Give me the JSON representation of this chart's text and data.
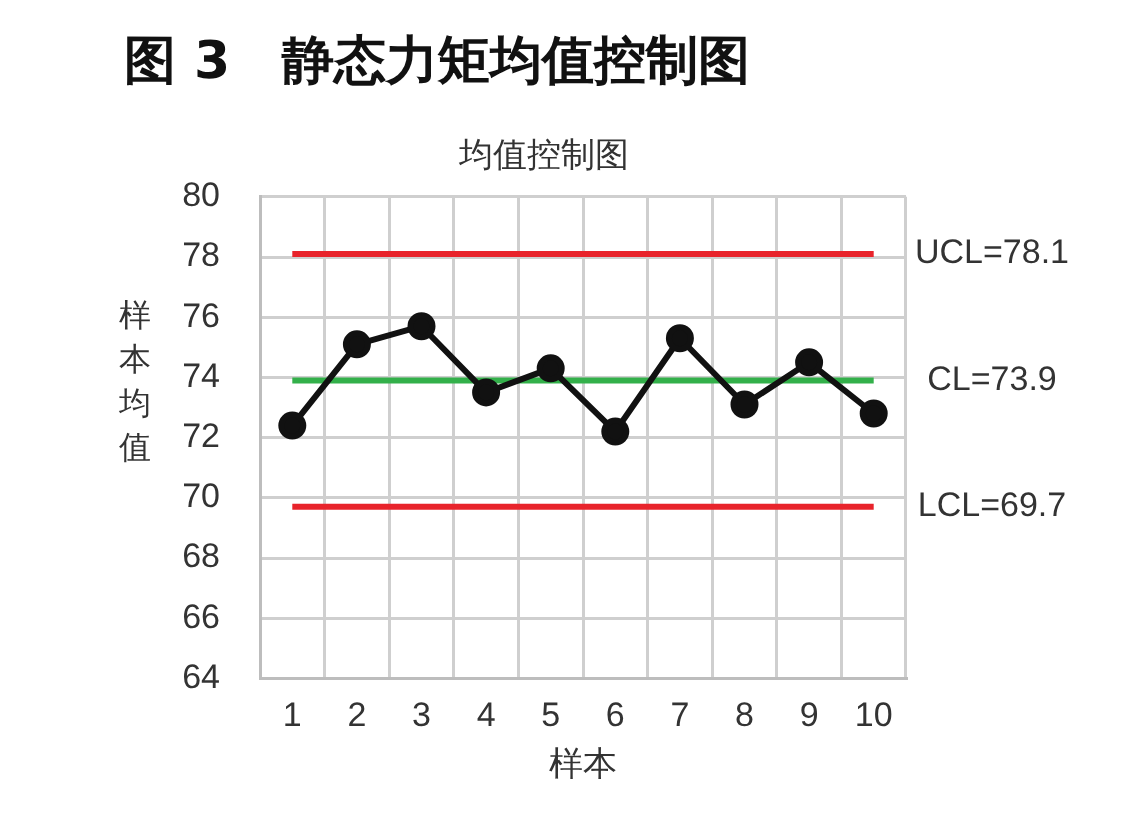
{
  "chart_data": {
    "type": "line",
    "title": "图 3　静态力矩均值控制图",
    "subtitle": "均值控制图",
    "xlabel": "样本",
    "ylabel": "样本均值",
    "categories": [
      "1",
      "2",
      "3",
      "4",
      "5",
      "6",
      "7",
      "8",
      "9",
      "10"
    ],
    "series": [
      {
        "color": "#111111",
        "values": [
          72.4,
          75.1,
          75.7,
          73.5,
          74.3,
          72.2,
          75.3,
          73.1,
          74.5,
          72.8
        ]
      }
    ],
    "ylim": [
      64,
      80
    ],
    "yticks": [
      64,
      66,
      68,
      70,
      72,
      74,
      76,
      78,
      80
    ],
    "grid": true,
    "marker": "circle",
    "line_style": "solid",
    "ref_lines": [
      {
        "axis": "y",
        "value": 78.1,
        "label": "UCL=78.1",
        "color": "#e8232b"
      },
      {
        "axis": "y",
        "value": 73.9,
        "label": "CL=73.9",
        "color": "#33b04a"
      },
      {
        "axis": "y",
        "value": 69.7,
        "label": "LCL=69.7",
        "color": "#e8232b"
      }
    ]
  }
}
